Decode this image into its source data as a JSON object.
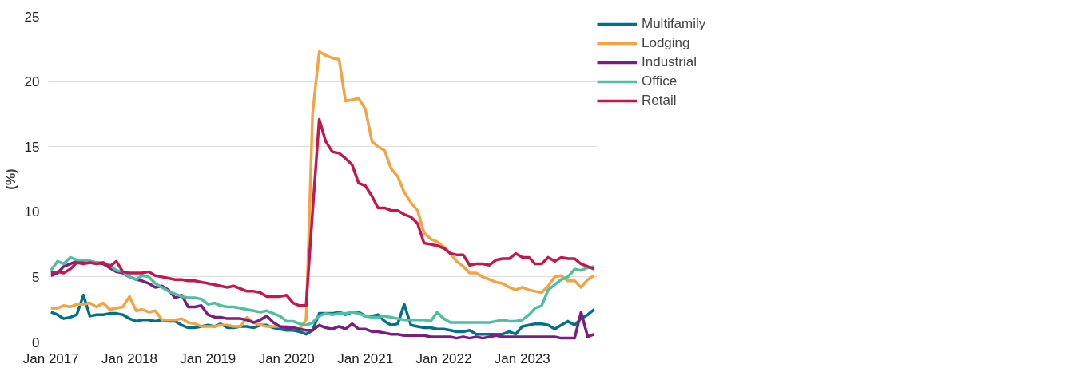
{
  "chart_data": {
    "type": "line",
    "ylabel": "(%)",
    "x": [
      "2017-01",
      "2017-02",
      "2017-03",
      "2017-04",
      "2017-05",
      "2017-06",
      "2017-07",
      "2017-08",
      "2017-09",
      "2017-10",
      "2017-11",
      "2017-12",
      "2018-01",
      "2018-02",
      "2018-03",
      "2018-04",
      "2018-05",
      "2018-06",
      "2018-07",
      "2018-08",
      "2018-09",
      "2018-10",
      "2018-11",
      "2018-12",
      "2019-01",
      "2019-02",
      "2019-03",
      "2019-04",
      "2019-05",
      "2019-06",
      "2019-07",
      "2019-08",
      "2019-09",
      "2019-10",
      "2019-11",
      "2019-12",
      "2020-01",
      "2020-02",
      "2020-03",
      "2020-04",
      "2020-05",
      "2020-06",
      "2020-07",
      "2020-08",
      "2020-09",
      "2020-10",
      "2020-11",
      "2020-12",
      "2021-01",
      "2021-02",
      "2021-03",
      "2021-04",
      "2021-05",
      "2021-06",
      "2021-07",
      "2021-08",
      "2021-09",
      "2021-10",
      "2021-11",
      "2021-12",
      "2022-01",
      "2022-02",
      "2022-03",
      "2022-04",
      "2022-05",
      "2022-06",
      "2022-07",
      "2022-08",
      "2022-09",
      "2022-10",
      "2022-11",
      "2022-12",
      "2023-01",
      "2023-02",
      "2023-03",
      "2023-04",
      "2023-05",
      "2023-06",
      "2023-07",
      "2023-08",
      "2023-09",
      "2023-10",
      "2023-11",
      "2023-12"
    ],
    "series": [
      {
        "name": "Multifamily",
        "color": "#006f8a",
        "values": [
          2.3,
          2.1,
          1.8,
          1.9,
          2.1,
          3.6,
          2.0,
          2.1,
          2.1,
          2.2,
          2.2,
          2.1,
          1.8,
          1.6,
          1.7,
          1.7,
          1.6,
          1.7,
          1.6,
          1.6,
          1.3,
          1.1,
          1.1,
          1.2,
          1.3,
          1.2,
          1.4,
          1.1,
          1.1,
          1.2,
          1.2,
          1.1,
          1.3,
          1.3,
          1.1,
          1.0,
          0.9,
          0.9,
          0.8,
          0.6,
          0.9,
          2.2,
          2.2,
          2.2,
          2.3,
          2.1,
          2.3,
          2.3,
          2.0,
          2.0,
          2.1,
          1.6,
          1.3,
          1.4,
          2.9,
          1.3,
          1.2,
          1.1,
          1.1,
          1.0,
          1.0,
          0.9,
          0.8,
          0.8,
          0.9,
          0.6,
          0.6,
          0.6,
          0.6,
          0.6,
          0.8,
          0.6,
          1.2,
          1.3,
          1.4,
          1.4,
          1.3,
          1.0,
          1.3,
          1.6,
          1.3,
          1.8,
          2.1,
          2.5
        ]
      },
      {
        "name": "Lodging",
        "color": "#f2a444",
        "values": [
          2.6,
          2.6,
          2.8,
          2.7,
          2.9,
          2.9,
          3.0,
          2.7,
          3.0,
          2.5,
          2.6,
          2.7,
          3.5,
          2.4,
          2.5,
          2.3,
          2.4,
          1.7,
          1.7,
          1.7,
          1.8,
          1.5,
          1.4,
          1.2,
          1.2,
          1.2,
          1.3,
          1.3,
          1.2,
          1.2,
          1.9,
          1.5,
          1.3,
          1.2,
          1.2,
          1.2,
          1.2,
          1.1,
          1.0,
          1.7,
          17.5,
          22.3,
          22.0,
          21.8,
          21.7,
          18.5,
          18.6,
          18.7,
          17.9,
          15.4,
          15.0,
          14.7,
          13.3,
          12.7,
          11.5,
          10.7,
          10.1,
          8.4,
          7.9,
          7.7,
          7.3,
          6.8,
          6.2,
          5.8,
          5.3,
          5.3,
          5.0,
          4.8,
          4.6,
          4.5,
          4.2,
          4.0,
          4.2,
          4.0,
          3.9,
          3.8,
          4.3,
          5.0,
          5.1,
          4.7,
          4.7,
          4.2,
          4.8,
          5.1
        ]
      },
      {
        "name": "Industrial",
        "color": "#7b1f7f",
        "values": [
          5.1,
          5.3,
          5.8,
          6.0,
          6.2,
          6.2,
          6.2,
          6.1,
          6.0,
          5.7,
          5.4,
          5.3,
          5.0,
          4.8,
          4.7,
          4.5,
          4.2,
          4.3,
          4.0,
          3.4,
          3.6,
          2.7,
          2.7,
          2.8,
          2.1,
          1.9,
          1.9,
          1.8,
          1.8,
          1.8,
          1.7,
          1.5,
          1.7,
          2.0,
          1.5,
          1.2,
          1.1,
          1.1,
          1.0,
          0.9,
          0.9,
          1.3,
          1.1,
          1.0,
          1.2,
          1.0,
          1.4,
          1.0,
          1.0,
          0.8,
          0.8,
          0.7,
          0.6,
          0.6,
          0.5,
          0.5,
          0.5,
          0.5,
          0.4,
          0.4,
          0.4,
          0.4,
          0.3,
          0.4,
          0.3,
          0.4,
          0.3,
          0.4,
          0.5,
          0.4,
          0.4,
          0.4,
          0.4,
          0.4,
          0.4,
          0.4,
          0.4,
          0.4,
          0.3,
          0.3,
          0.3,
          2.3,
          0.4,
          0.6
        ]
      },
      {
        "name": "Office",
        "color": "#4fbf9f",
        "values": [
          5.5,
          6.2,
          6.0,
          6.5,
          6.3,
          6.3,
          6.2,
          6.1,
          6.1,
          5.9,
          5.5,
          5.4,
          5.0,
          4.8,
          5.1,
          5.0,
          4.5,
          4.2,
          3.9,
          3.7,
          3.5,
          3.4,
          3.4,
          3.3,
          2.9,
          3.0,
          2.8,
          2.7,
          2.7,
          2.6,
          2.5,
          2.4,
          2.3,
          2.4,
          2.2,
          2.0,
          1.6,
          1.6,
          1.4,
          1.3,
          1.5,
          2.0,
          2.2,
          2.1,
          2.2,
          2.2,
          2.3,
          2.2,
          2.0,
          1.9,
          1.9,
          2.0,
          1.9,
          1.8,
          1.7,
          1.7,
          1.7,
          1.7,
          1.6,
          2.3,
          1.8,
          1.5,
          1.5,
          1.5,
          1.5,
          1.5,
          1.5,
          1.5,
          1.6,
          1.7,
          1.6,
          1.6,
          1.7,
          2.1,
          2.6,
          2.8,
          4.0,
          4.4,
          4.8,
          5.0,
          5.6,
          5.5,
          5.7,
          5.8
        ]
      },
      {
        "name": "Retail",
        "color": "#c0194f",
        "values": [
          5.3,
          5.4,
          5.3,
          5.6,
          6.1,
          6.0,
          6.1,
          6.0,
          6.1,
          5.8,
          6.2,
          5.4,
          5.3,
          5.3,
          5.3,
          5.4,
          5.1,
          5.0,
          4.9,
          4.8,
          4.8,
          4.7,
          4.7,
          4.6,
          4.5,
          4.4,
          4.3,
          4.2,
          4.3,
          4.1,
          3.9,
          3.9,
          3.8,
          3.5,
          3.5,
          3.5,
          3.6,
          3.0,
          2.8,
          2.8,
          10.0,
          17.1,
          15.4,
          14.6,
          14.5,
          14.1,
          13.6,
          12.2,
          12.0,
          11.2,
          10.3,
          10.3,
          10.1,
          10.1,
          9.8,
          9.6,
          9.1,
          7.6,
          7.5,
          7.4,
          7.2,
          6.8,
          6.7,
          6.7,
          5.9,
          6.0,
          6.0,
          5.9,
          6.3,
          6.4,
          6.4,
          6.8,
          6.5,
          6.5,
          6.0,
          6.0,
          6.5,
          6.2,
          6.5,
          6.4,
          6.4,
          6.0,
          5.8,
          5.6
        ]
      }
    ],
    "xlim": [
      "2016-12-20",
      "2023-12-15"
    ],
    "xticks": [
      {
        "value": "2017-01",
        "label": "Jan 2017"
      },
      {
        "value": "2018-01",
        "label": "Jan 2018"
      },
      {
        "value": "2019-01",
        "label": "Jan 2019"
      },
      {
        "value": "2020-01",
        "label": "Jan 2020"
      },
      {
        "value": "2021-01",
        "label": "Jan 2021"
      },
      {
        "value": "2022-01",
        "label": "Jan 2022"
      },
      {
        "value": "2023-01",
        "label": "Jan 2023"
      }
    ],
    "ylim": [
      0,
      25
    ],
    "yticks": [
      0,
      5,
      10,
      15,
      20,
      25
    ],
    "grid": "y",
    "legend": "top right",
    "marker": "none",
    "line_style": "solid"
  }
}
